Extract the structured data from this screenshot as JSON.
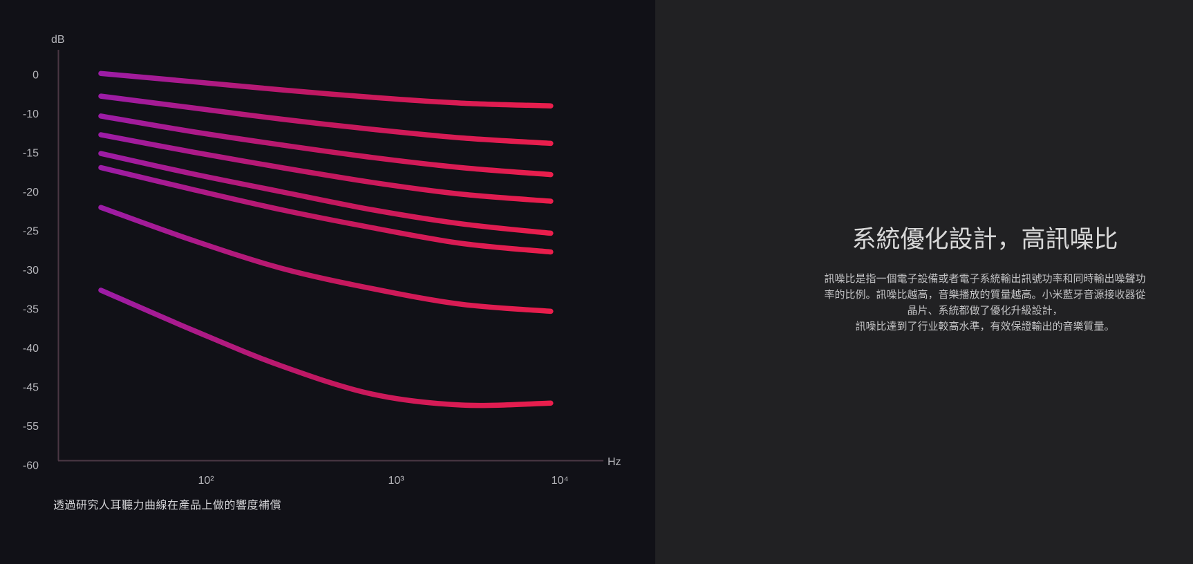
{
  "colors": {
    "left_bg": "#111117",
    "right_bg": "#212123",
    "axis": "#4b3844",
    "tick_text": "#b5b5ba",
    "caption_text": "#d2d2d5",
    "curve_gradient_start": "#9C1CA6",
    "curve_gradient_mid": "#C2185F",
    "curve_gradient_end": "#EA1E4C"
  },
  "chart": {
    "y_axis_unit": "dB",
    "x_axis_unit": "Hz",
    "caption": "透過研究人耳聽力曲線在產品上做的響度補償"
  },
  "chart_data": {
    "type": "line",
    "title": "",
    "xlabel": "Hz",
    "ylabel": "dB",
    "x_scale": "log",
    "grid": false,
    "legend": false,
    "x_tick_labels": [
      "10²",
      "10³",
      "10⁴"
    ],
    "x_tick_log_values": [
      2,
      3,
      4
    ],
    "y_tick_labels": [
      "0",
      "-10",
      "-15",
      "-20",
      "-25",
      "-30",
      "-35",
      "-40",
      "-45",
      "-55",
      "-60"
    ],
    "y_tick_values": [
      0,
      -10,
      -15,
      -20,
      -25,
      -30,
      -35,
      -40,
      -45,
      -55,
      -60
    ],
    "x": [
      28,
      85,
      250,
      750,
      2500,
      8800
    ],
    "series": [
      {
        "name": "curve-1",
        "values": [
          0.3,
          -1.8,
          -3.9,
          -5.8,
          -7.3,
          -8.0
        ]
      },
      {
        "name": "curve-2",
        "values": [
          -5.5,
          -8.5,
          -10.7,
          -12.0,
          -13.1,
          -13.8
        ]
      },
      {
        "name": "curve-3",
        "values": [
          -10.3,
          -12.3,
          -14.0,
          -15.6,
          -16.9,
          -17.8
        ]
      },
      {
        "name": "curve-4",
        "values": [
          -12.7,
          -14.9,
          -16.9,
          -18.8,
          -20.3,
          -21.2
        ]
      },
      {
        "name": "curve-5",
        "values": [
          -15.1,
          -17.7,
          -20.0,
          -22.3,
          -24.1,
          -25.3
        ]
      },
      {
        "name": "curve-6",
        "values": [
          -16.9,
          -19.7,
          -22.3,
          -24.6,
          -26.6,
          -27.7
        ]
      },
      {
        "name": "curve-7",
        "values": [
          -22.0,
          -26.2,
          -29.8,
          -32.4,
          -34.4,
          -35.3
        ]
      },
      {
        "name": "curve-8",
        "values": [
          -32.6,
          -37.7,
          -42.3,
          -46.8,
          -49.6,
          -49.1
        ]
      }
    ]
  },
  "panel": {
    "title": "系統優化設計，高訊噪比",
    "paragraph_lines": [
      "訊噪比是指一個電子設備或者電子系統輸出訊號功率和同時輸出噪聲功",
      "率的比例。訊噪比越高，音樂播放的質量越高。小米藍牙音源接收器從",
      "晶片、系統都做了優化升級設計，",
      "訊噪比達到了行业較高水準，有效保證輸出的音樂質量。"
    ]
  }
}
